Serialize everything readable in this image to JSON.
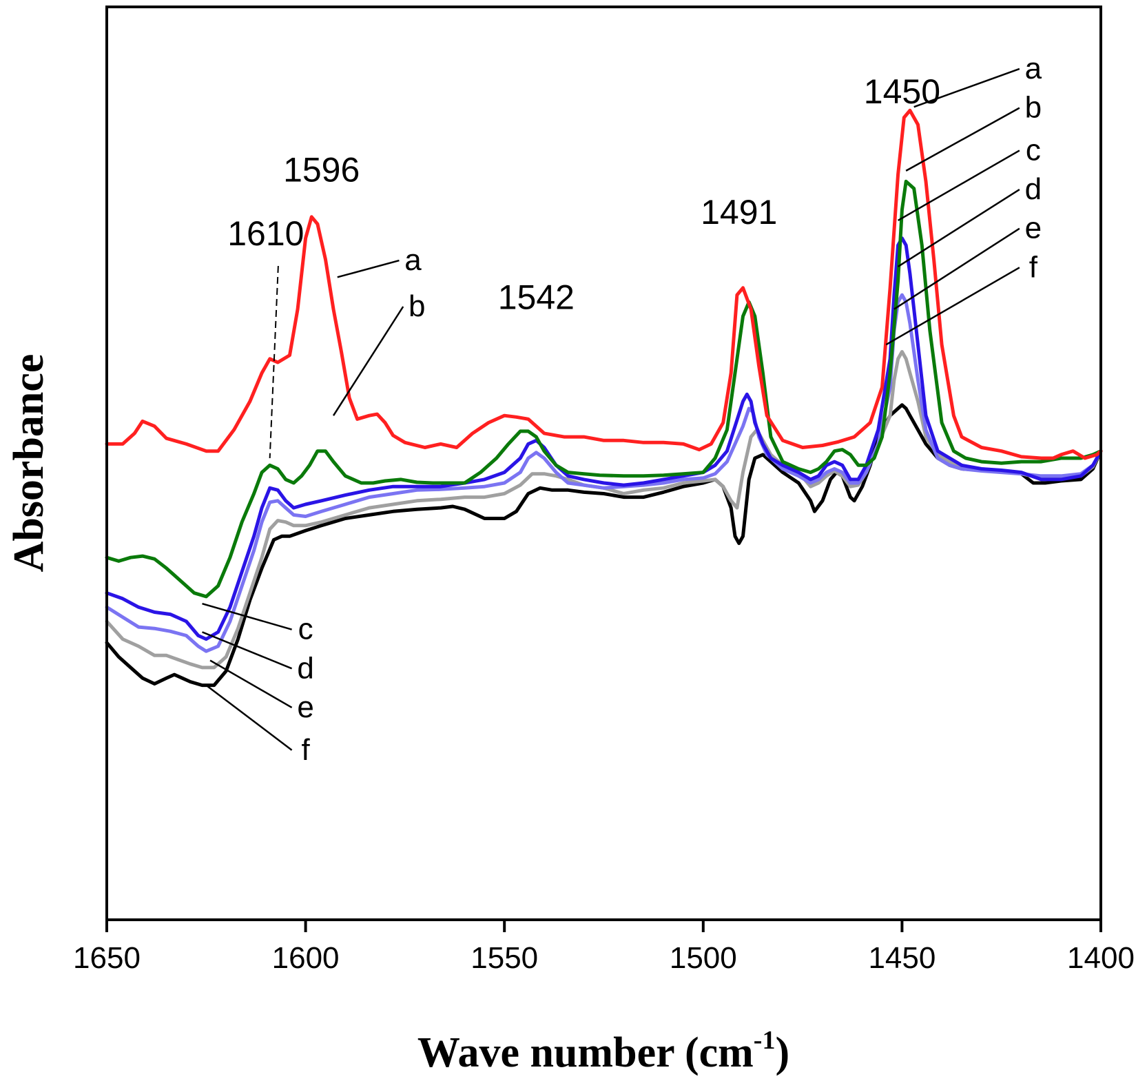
{
  "chart_data": {
    "type": "line",
    "title": "",
    "xlabel": "Wave number (cm",
    "xlabel_sup": "-1",
    "xlabel_close": ")",
    "ylabel": "Absorbance",
    "xlim": [
      1650,
      1400
    ],
    "x_reversed": true,
    "ylim": [
      0.0,
      1.0
    ],
    "y_ticks_shown": false,
    "x_ticks": [
      1650,
      1600,
      1550,
      1500,
      1450,
      1400
    ],
    "x_tick_labels": [
      "1650",
      "1600",
      "1550",
      "1500",
      "1450",
      "1400"
    ],
    "peak_annotations": [
      {
        "text": "1596",
        "x": 1596,
        "y": 0.89
      },
      {
        "text": "1610",
        "x": 1610,
        "y": 0.8,
        "dashed_to": [
          1609,
          0.5
        ]
      },
      {
        "text": "1542",
        "x": 1542,
        "y": 0.71
      },
      {
        "text": "1491",
        "x": 1491,
        "y": 0.83
      },
      {
        "text": "1450",
        "x": 1450,
        "y": 1.0
      }
    ],
    "curve_labels": [
      {
        "text": "a",
        "series": "a",
        "label_at": [
          1573,
          0.765
        ],
        "point_at": [
          1592,
          0.755
        ]
      },
      {
        "text": "b",
        "series": "b",
        "label_at": [
          1572,
          0.7
        ],
        "point_at": [
          1593,
          0.56
        ]
      },
      {
        "text": "a",
        "series": "a",
        "label_at": [
          1417,
          1.035
        ],
        "point_at": [
          1447,
          0.995
        ]
      },
      {
        "text": "b",
        "series": "b",
        "label_at": [
          1417,
          0.98
        ],
        "point_at": [
          1449,
          0.905
        ]
      },
      {
        "text": "c",
        "series": "c",
        "label_at": [
          1417,
          0.92
        ],
        "point_at": [
          1451,
          0.835
        ]
      },
      {
        "text": "d",
        "series": "d",
        "label_at": [
          1417,
          0.865
        ],
        "point_at": [
          1451,
          0.77
        ]
      },
      {
        "text": "e",
        "series": "e",
        "label_at": [
          1417,
          0.81
        ],
        "point_at": [
          1452,
          0.71
        ]
      },
      {
        "text": "f",
        "series": "f",
        "label_at": [
          1417,
          0.755
        ],
        "point_at": [
          1454,
          0.66
        ]
      },
      {
        "text": "c",
        "series": "c",
        "label_at": [
          1600,
          0.245
        ],
        "point_at": [
          1626,
          0.295
        ]
      },
      {
        "text": "d",
        "series": "d",
        "label_at": [
          1600,
          0.19
        ],
        "point_at": [
          1626,
          0.255
        ]
      },
      {
        "text": "e",
        "series": "e",
        "label_at": [
          1600,
          0.135
        ],
        "point_at": [
          1624,
          0.215
        ]
      },
      {
        "text": "f",
        "series": "f",
        "label_at": [
          1600,
          0.075
        ],
        "point_at": [
          1625,
          0.18
        ]
      }
    ],
    "series": [
      {
        "name": "a",
        "color": "#ff2020",
        "x": [
          1650,
          1646,
          1643,
          1641,
          1638,
          1635,
          1630,
          1625,
          1622,
          1618,
          1614,
          1611,
          1609,
          1607,
          1604,
          1602,
          1600,
          1598.5,
          1597,
          1595,
          1593,
          1591,
          1589,
          1587,
          1584,
          1582,
          1580,
          1578,
          1575,
          1570,
          1566,
          1562,
          1558,
          1554,
          1550,
          1547,
          1544,
          1540,
          1535,
          1530,
          1525,
          1520,
          1515,
          1510,
          1505,
          1501,
          1498,
          1495,
          1493,
          1491.5,
          1490,
          1488,
          1486,
          1484,
          1480,
          1475,
          1470,
          1466,
          1462,
          1458,
          1455,
          1453,
          1451,
          1449.5,
          1448,
          1446,
          1444,
          1442,
          1440,
          1437,
          1435,
          1430,
          1425,
          1420,
          1415,
          1412,
          1410,
          1407,
          1404,
          1401,
          1400
        ],
        "y": [
          0.52,
          0.52,
          0.535,
          0.552,
          0.545,
          0.528,
          0.52,
          0.51,
          0.51,
          0.54,
          0.58,
          0.62,
          0.64,
          0.635,
          0.645,
          0.71,
          0.81,
          0.84,
          0.83,
          0.78,
          0.71,
          0.65,
          0.585,
          0.555,
          0.56,
          0.562,
          0.55,
          0.532,
          0.522,
          0.515,
          0.52,
          0.515,
          0.535,
          0.55,
          0.56,
          0.558,
          0.555,
          0.535,
          0.53,
          0.53,
          0.525,
          0.525,
          0.522,
          0.522,
          0.52,
          0.512,
          0.52,
          0.55,
          0.62,
          0.73,
          0.74,
          0.71,
          0.63,
          0.56,
          0.525,
          0.515,
          0.518,
          0.523,
          0.53,
          0.55,
          0.6,
          0.74,
          0.9,
          0.98,
          0.99,
          0.97,
          0.89,
          0.78,
          0.66,
          0.56,
          0.53,
          0.515,
          0.51,
          0.502,
          0.5,
          0.5,
          0.505,
          0.51,
          0.5,
          0.505,
          0.51
        ]
      },
      {
        "name": "b",
        "color": "#0a7a0a",
        "x": [
          1650,
          1647,
          1644,
          1641,
          1638,
          1635,
          1632,
          1628,
          1625,
          1622,
          1619,
          1616,
          1613,
          1611,
          1609,
          1607,
          1605,
          1603,
          1601,
          1599,
          1597,
          1595,
          1593,
          1590,
          1586,
          1583,
          1580,
          1576,
          1572,
          1568,
          1564,
          1560,
          1556,
          1552,
          1549,
          1546,
          1544,
          1542,
          1540,
          1537,
          1534,
          1530,
          1526,
          1520,
          1515,
          1510,
          1505,
          1500,
          1497,
          1494,
          1492,
          1490,
          1488.5,
          1487,
          1485,
          1483,
          1480,
          1476,
          1473,
          1471,
          1469,
          1467,
          1465,
          1463,
          1461,
          1459,
          1457,
          1455,
          1453,
          1451,
          1450,
          1449,
          1447,
          1445,
          1443,
          1440,
          1437,
          1434,
          1430,
          1425,
          1420,
          1415,
          1410,
          1405,
          1402,
          1400
        ],
        "y": [
          0.36,
          0.355,
          0.36,
          0.362,
          0.358,
          0.345,
          0.33,
          0.31,
          0.305,
          0.32,
          0.36,
          0.41,
          0.45,
          0.48,
          0.49,
          0.485,
          0.47,
          0.465,
          0.475,
          0.49,
          0.51,
          0.51,
          0.495,
          0.475,
          0.465,
          0.465,
          0.468,
          0.47,
          0.466,
          0.465,
          0.465,
          0.465,
          0.48,
          0.5,
          0.52,
          0.538,
          0.538,
          0.53,
          0.51,
          0.49,
          0.48,
          0.478,
          0.476,
          0.475,
          0.475,
          0.476,
          0.478,
          0.48,
          0.5,
          0.54,
          0.62,
          0.7,
          0.72,
          0.7,
          0.62,
          0.53,
          0.495,
          0.485,
          0.48,
          0.485,
          0.495,
          0.51,
          0.512,
          0.505,
          0.49,
          0.49,
          0.5,
          0.53,
          0.62,
          0.75,
          0.85,
          0.89,
          0.88,
          0.8,
          0.68,
          0.55,
          0.51,
          0.5,
          0.495,
          0.493,
          0.495,
          0.495,
          0.5,
          0.5,
          0.505,
          0.51
        ]
      },
      {
        "name": "c",
        "color": "#2a14e6",
        "x": [
          1650,
          1646,
          1642,
          1638,
          1634,
          1630,
          1627,
          1625,
          1622,
          1619,
          1616,
          1613,
          1611,
          1609,
          1607,
          1605,
          1603,
          1600,
          1596,
          1590,
          1584,
          1578,
          1572,
          1566,
          1560,
          1555,
          1550,
          1546,
          1544,
          1542,
          1540,
          1537,
          1534,
          1530,
          1525,
          1520,
          1515,
          1510,
          1505,
          1500,
          1497,
          1494,
          1492,
          1490,
          1489,
          1488,
          1487,
          1485,
          1483,
          1480,
          1476,
          1473,
          1471,
          1469,
          1467,
          1465,
          1463,
          1461,
          1459,
          1456,
          1453,
          1452,
          1451,
          1450,
          1449,
          1448,
          1446,
          1444,
          1441,
          1438,
          1435,
          1430,
          1425,
          1420,
          1415,
          1410,
          1405,
          1402,
          1400
        ],
        "y": [
          0.31,
          0.302,
          0.29,
          0.283,
          0.28,
          0.27,
          0.25,
          0.245,
          0.255,
          0.29,
          0.34,
          0.39,
          0.43,
          0.458,
          0.455,
          0.44,
          0.43,
          0.435,
          0.44,
          0.448,
          0.455,
          0.46,
          0.46,
          0.46,
          0.465,
          0.47,
          0.48,
          0.5,
          0.52,
          0.525,
          0.515,
          0.49,
          0.475,
          0.47,
          0.465,
          0.462,
          0.465,
          0.47,
          0.475,
          0.48,
          0.49,
          0.51,
          0.545,
          0.58,
          0.59,
          0.58,
          0.55,
          0.52,
          0.5,
          0.49,
          0.48,
          0.47,
          0.475,
          0.49,
          0.495,
          0.49,
          0.47,
          0.47,
          0.49,
          0.54,
          0.64,
          0.73,
          0.8,
          0.81,
          0.8,
          0.76,
          0.66,
          0.56,
          0.51,
          0.5,
          0.49,
          0.485,
          0.483,
          0.48,
          0.47,
          0.47,
          0.475,
          0.49,
          0.51
        ]
      },
      {
        "name": "d",
        "color": "#7b74f2",
        "x": [
          1650,
          1646,
          1642,
          1638,
          1634,
          1630,
          1627,
          1625,
          1622,
          1619,
          1616,
          1613,
          1611,
          1609,
          1607,
          1605,
          1603,
          1600,
          1596,
          1590,
          1584,
          1578,
          1572,
          1566,
          1560,
          1555,
          1550,
          1546,
          1544,
          1542,
          1540,
          1537,
          1534,
          1530,
          1525,
          1520,
          1515,
          1510,
          1505,
          1500,
          1497,
          1494,
          1492,
          1490,
          1488.5,
          1487.5,
          1486,
          1484,
          1482,
          1480,
          1476,
          1473,
          1471,
          1469,
          1467,
          1465,
          1463,
          1461,
          1459,
          1456,
          1453,
          1452,
          1451,
          1450,
          1449,
          1448,
          1446,
          1444,
          1441,
          1438,
          1435,
          1430,
          1425,
          1420,
          1415,
          1410,
          1405,
          1402,
          1400
        ],
        "y": [
          0.29,
          0.276,
          0.262,
          0.26,
          0.256,
          0.25,
          0.235,
          0.228,
          0.235,
          0.27,
          0.32,
          0.37,
          0.41,
          0.438,
          0.44,
          0.43,
          0.42,
          0.418,
          0.425,
          0.435,
          0.445,
          0.45,
          0.455,
          0.456,
          0.458,
          0.46,
          0.465,
          0.48,
          0.5,
          0.508,
          0.5,
          0.48,
          0.465,
          0.462,
          0.458,
          0.46,
          0.462,
          0.465,
          0.47,
          0.472,
          0.478,
          0.495,
          0.52,
          0.545,
          0.57,
          0.565,
          0.53,
          0.505,
          0.495,
          0.485,
          0.475,
          0.465,
          0.47,
          0.48,
          0.485,
          0.48,
          0.465,
          0.465,
          0.48,
          0.52,
          0.6,
          0.68,
          0.72,
          0.73,
          0.72,
          0.69,
          0.61,
          0.54,
          0.5,
          0.49,
          0.485,
          0.482,
          0.48,
          0.478,
          0.475,
          0.475,
          0.478,
          0.49,
          0.51
        ]
      },
      {
        "name": "e",
        "color": "#a0a0a0",
        "x": [
          1650,
          1646,
          1642,
          1638,
          1635,
          1632,
          1629,
          1626,
          1623,
          1620,
          1617,
          1614,
          1611,
          1609,
          1607,
          1605,
          1603,
          1600,
          1596,
          1590,
          1584,
          1578,
          1572,
          1566,
          1560,
          1555,
          1550,
          1546,
          1543,
          1540,
          1537,
          1534,
          1530,
          1525,
          1520,
          1515,
          1510,
          1505,
          1500,
          1497,
          1495,
          1493,
          1491.5,
          1490,
          1488,
          1486.5,
          1485,
          1483,
          1480,
          1476,
          1473,
          1471,
          1469,
          1467,
          1465,
          1463,
          1461,
          1459,
          1456,
          1453,
          1452,
          1451,
          1450,
          1449,
          1448,
          1446,
          1444,
          1441,
          1438,
          1435,
          1430,
          1425,
          1420,
          1415,
          1410,
          1405,
          1402,
          1400
        ],
        "y": [
          0.27,
          0.245,
          0.235,
          0.222,
          0.222,
          0.216,
          0.21,
          0.205,
          0.205,
          0.22,
          0.26,
          0.31,
          0.36,
          0.4,
          0.412,
          0.41,
          0.405,
          0.405,
          0.41,
          0.42,
          0.43,
          0.435,
          0.44,
          0.442,
          0.445,
          0.445,
          0.45,
          0.462,
          0.478,
          0.478,
          0.475,
          0.47,
          0.462,
          0.458,
          0.45,
          0.455,
          0.458,
          0.465,
          0.468,
          0.47,
          0.46,
          0.44,
          0.43,
          0.48,
          0.53,
          0.54,
          0.525,
          0.505,
          0.49,
          0.48,
          0.46,
          0.465,
          0.475,
          0.482,
          0.475,
          0.46,
          0.462,
          0.48,
          0.52,
          0.56,
          0.61,
          0.64,
          0.65,
          0.64,
          0.62,
          0.58,
          0.53,
          0.505,
          0.495,
          0.488,
          0.485,
          0.482,
          0.478,
          0.472,
          0.472,
          0.475,
          0.488,
          0.51
        ]
      },
      {
        "name": "f",
        "color": "#000000",
        "x": [
          1650,
          1647,
          1644,
          1641,
          1638,
          1635,
          1633,
          1631,
          1629,
          1626,
          1623,
          1620,
          1617,
          1614,
          1611,
          1608,
          1606,
          1604,
          1600,
          1596,
          1590,
          1584,
          1578,
          1572,
          1566,
          1563,
          1560,
          1555,
          1550,
          1547,
          1544,
          1541,
          1538,
          1534,
          1530,
          1525,
          1520,
          1515,
          1510,
          1505,
          1500,
          1497,
          1495,
          1493,
          1492,
          1491,
          1490,
          1488.5,
          1487,
          1485,
          1483,
          1480,
          1476,
          1473,
          1472,
          1470,
          1468,
          1466.5,
          1465,
          1463,
          1462,
          1460,
          1458,
          1456,
          1453,
          1451,
          1450,
          1449,
          1448,
          1446,
          1444,
          1441,
          1438,
          1435,
          1430,
          1425,
          1420,
          1417,
          1414,
          1410,
          1405,
          1402,
          1400
        ],
        "y": [
          0.24,
          0.22,
          0.205,
          0.19,
          0.182,
          0.19,
          0.195,
          0.19,
          0.185,
          0.18,
          0.18,
          0.2,
          0.245,
          0.3,
          0.345,
          0.385,
          0.39,
          0.39,
          0.398,
          0.405,
          0.415,
          0.42,
          0.425,
          0.428,
          0.43,
          0.432,
          0.428,
          0.415,
          0.415,
          0.425,
          0.45,
          0.458,
          0.455,
          0.455,
          0.452,
          0.45,
          0.445,
          0.445,
          0.452,
          0.46,
          0.465,
          0.47,
          0.46,
          0.43,
          0.39,
          0.38,
          0.39,
          0.47,
          0.5,
          0.505,
          0.495,
          0.48,
          0.465,
          0.44,
          0.425,
          0.44,
          0.47,
          0.48,
          0.475,
          0.445,
          0.44,
          0.46,
          0.49,
          0.53,
          0.56,
          0.57,
          0.575,
          0.57,
          0.56,
          0.54,
          0.52,
          0.5,
          0.49,
          0.485,
          0.483,
          0.482,
          0.478,
          0.465,
          0.465,
          0.468,
          0.47,
          0.485,
          0.51
        ]
      }
    ]
  }
}
